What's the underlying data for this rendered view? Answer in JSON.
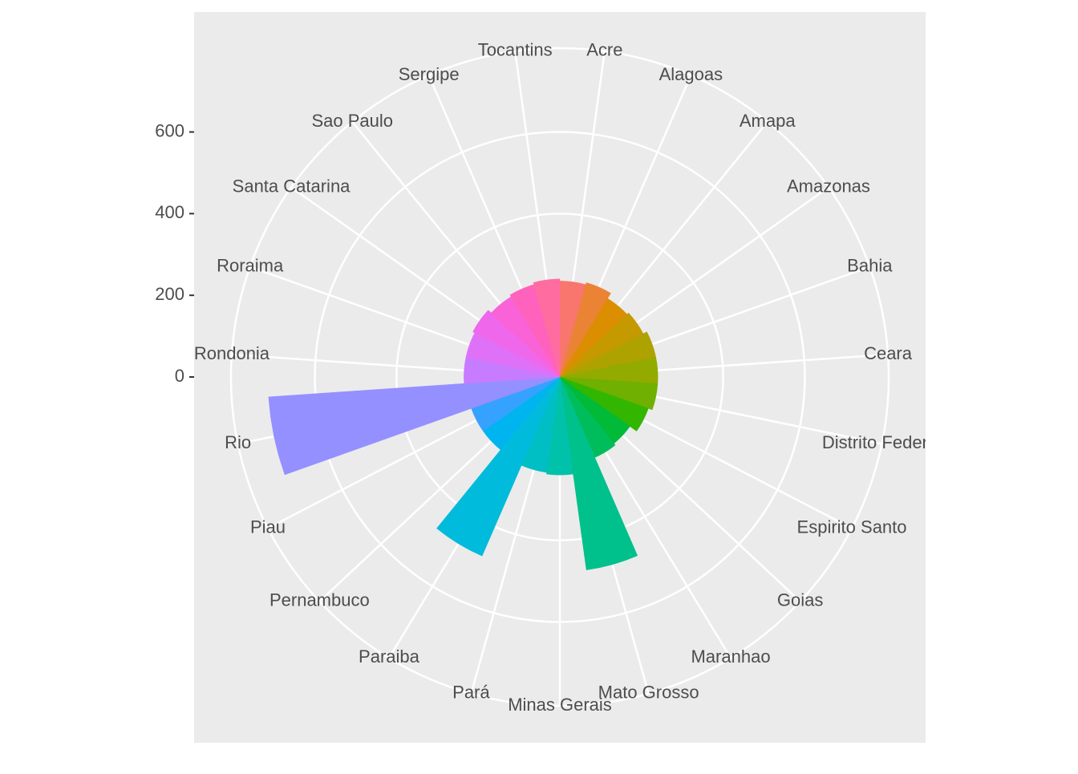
{
  "chart_data": {
    "type": "polar-bar",
    "categories": [
      "Acre",
      "Alagoas",
      "Amapa",
      "Amazonas",
      "Bahia",
      "Ceara",
      "Distrito Federal",
      "Espirito Santo",
      "Goias",
      "Maranhao",
      "Mato Grosso",
      "Minas Gerais",
      "Pará",
      "Paraiba",
      "Pernambuco",
      "Piau",
      "Rio",
      "Rondonia",
      "Roraima",
      "Santa Catarina",
      "Sao Paulo",
      "Sergipe",
      "Tocantins"
    ],
    "values": [
      235,
      240,
      225,
      230,
      240,
      240,
      240,
      230,
      210,
      215,
      477,
      240,
      236,
      478,
      230,
      230,
      715,
      235,
      235,
      240,
      230,
      235,
      240
    ],
    "colors": [
      "#F8766D",
      "#EB8335",
      "#DB8E00",
      "#C59900",
      "#AEA200",
      "#93AA00",
      "#6FB000",
      "#33B600",
      "#00BA38",
      "#00BD5C",
      "#00C08B",
      "#00C1A9",
      "#00BFC4",
      "#00BBDB",
      "#00B4EF",
      "#35A2FF",
      "#9590FF",
      "#C77CFF",
      "#DE71F8",
      "#EF67EB",
      "#FA62D8",
      "#FF62BC",
      "#FF6C9F"
    ],
    "ylim": [
      0,
      715
    ],
    "yticks": [
      0,
      200,
      400,
      600
    ],
    "grid": true
  }
}
